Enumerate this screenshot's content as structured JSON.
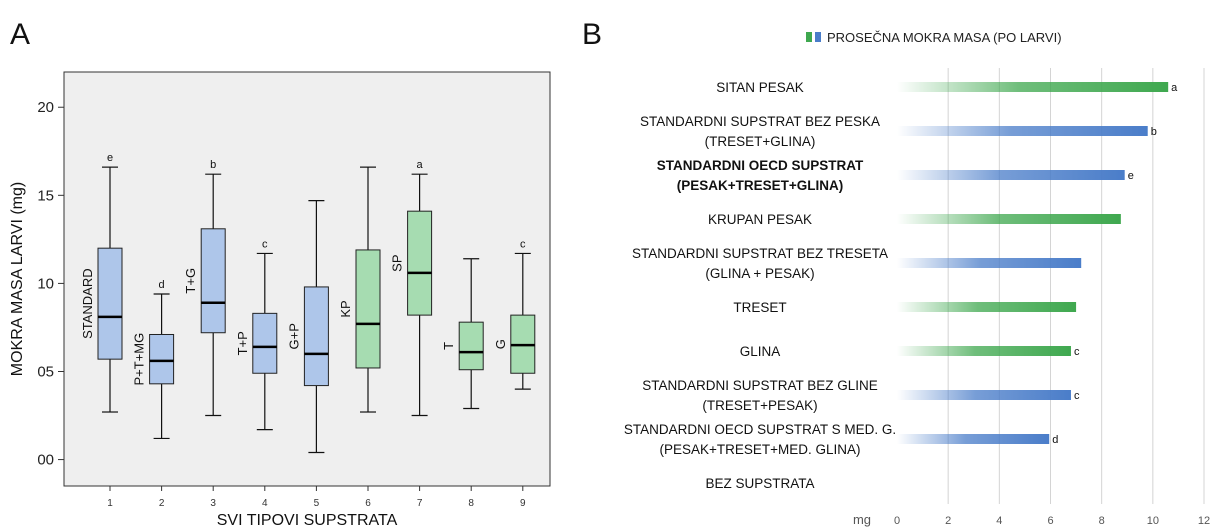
{
  "chart_data": [
    {
      "panel": "A",
      "type": "box",
      "title": "",
      "xlabel": "SVI TIPOVI SUPSTRATA",
      "ylabel": "MOKRA MASA LARVI (mg)",
      "ylim": [
        -1.5,
        22
      ],
      "y_ticks": [
        {
          "value": 0,
          "label": "00"
        },
        {
          "value": 5,
          "label": "05"
        },
        {
          "value": 10,
          "label": "10"
        },
        {
          "value": 15,
          "label": "15"
        },
        {
          "value": 20,
          "label": "20"
        }
      ],
      "colors": {
        "blue": "#aec6ea",
        "green": "#a6dcb1",
        "background": "#efefef"
      },
      "boxes": [
        {
          "x": "1",
          "label": "STANDARD",
          "letter": "e",
          "color": "blue",
          "min": 2.7,
          "q1": 5.7,
          "median": 8.1,
          "q3": 12.0,
          "max": 16.6
        },
        {
          "x": "2",
          "label": "P+T+MG",
          "letter": "d",
          "color": "blue",
          "min": 1.2,
          "q1": 4.3,
          "median": 5.6,
          "q3": 7.1,
          "max": 9.4
        },
        {
          "x": "3",
          "label": "T+G",
          "letter": "b",
          "color": "blue",
          "min": 2.5,
          "q1": 7.2,
          "median": 8.9,
          "q3": 13.1,
          "max": 16.2
        },
        {
          "x": "4",
          "label": "T+P",
          "letter": "c",
          "color": "blue",
          "min": 1.7,
          "q1": 4.9,
          "median": 6.4,
          "q3": 8.3,
          "max": 11.7
        },
        {
          "x": "5",
          "label": "G+P",
          "letter": "",
          "color": "blue",
          "min": 0.4,
          "q1": 4.2,
          "median": 6.0,
          "q3": 9.8,
          "max": 14.7
        },
        {
          "x": "6",
          "label": "KP",
          "letter": "",
          "color": "green",
          "min": 2.7,
          "q1": 5.2,
          "median": 7.7,
          "q3": 11.9,
          "max": 16.6
        },
        {
          "x": "7",
          "label": "SP",
          "letter": "a",
          "color": "green",
          "min": 2.5,
          "q1": 8.2,
          "median": 10.6,
          "q3": 14.1,
          "max": 16.2
        },
        {
          "x": "8",
          "label": "T",
          "letter": "",
          "color": "green",
          "min": 2.9,
          "q1": 5.1,
          "median": 6.1,
          "q3": 7.8,
          "max": 11.4
        },
        {
          "x": "9",
          "label": "G",
          "letter": "c",
          "color": "green",
          "min": 4.0,
          "q1": 4.9,
          "median": 6.5,
          "q3": 8.2,
          "max": 11.7
        }
      ]
    },
    {
      "panel": "B",
      "type": "bar",
      "orientation": "horizontal",
      "legend": "PROSEČNA MOKRA MASA (PO LARVI)",
      "legend_position": "top",
      "xlabel": "mg",
      "xlim": [
        0,
        12
      ],
      "x_ticks": [
        0,
        2,
        4,
        6,
        8,
        10,
        12
      ],
      "colors": {
        "green": "#3fa84f",
        "blue": "#4a7dc9"
      },
      "categories": [
        {
          "lines": [
            "SITAN PESAK"
          ],
          "bold": false,
          "value": 10.6,
          "color": "green",
          "letter": "a"
        },
        {
          "lines": [
            "STANDARDNI SUPSTRAT BEZ PESKA",
            "(TRESET+GLINA)"
          ],
          "bold": false,
          "value": 9.8,
          "color": "blue",
          "letter": "b"
        },
        {
          "lines": [
            "STANDARDNI OECD SUPSTRAT",
            "(PESAK+TRESET+GLINA)"
          ],
          "bold": true,
          "value": 8.9,
          "color": "blue",
          "letter": "e"
        },
        {
          "lines": [
            "KRUPAN PESAK"
          ],
          "bold": false,
          "value": 8.75,
          "color": "green",
          "letter": ""
        },
        {
          "lines": [
            "STANDARDNI SUPSTRAT BEZ TRESETA",
            "(GLINA + PESAK)"
          ],
          "bold": false,
          "value": 7.2,
          "color": "blue",
          "letter": ""
        },
        {
          "lines": [
            "TRESET"
          ],
          "bold": false,
          "value": 7.0,
          "color": "green",
          "letter": ""
        },
        {
          "lines": [
            "GLINA"
          ],
          "bold": false,
          "value": 6.8,
          "color": "green",
          "letter": "c"
        },
        {
          "lines": [
            "STANDARDNI SUPSTRAT BEZ GLINE",
            "(TRESET+PESAK)"
          ],
          "bold": false,
          "value": 6.8,
          "color": "blue",
          "letter": "c"
        },
        {
          "lines": [
            "STANDARDNI OECD SUPSTRAT S MED. G.",
            "(PESAK+TRESET+MED. GLINA)"
          ],
          "bold": false,
          "value": 5.95,
          "color": "blue",
          "letter": "d"
        },
        {
          "lines": [
            "BEZ SUPSTRATA"
          ],
          "bold": false,
          "value": 0,
          "color": "green",
          "letter": ""
        }
      ]
    }
  ]
}
